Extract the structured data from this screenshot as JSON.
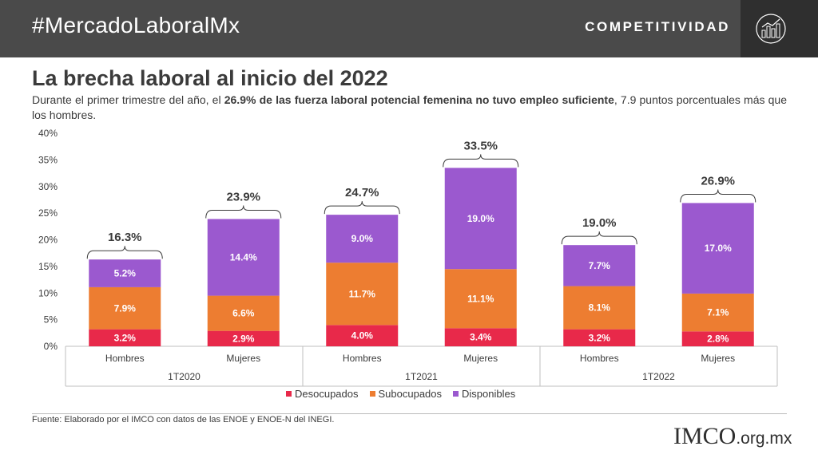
{
  "header": {
    "hashtag": "#MercadoLaboralMx",
    "brand_tag": "COMPETITIVIDAD",
    "brand_icon": "city-chart-icon"
  },
  "title": "La brecha laboral al inicio del 2022",
  "subtitle": {
    "part1": "Durante el primer trimestre del año, el ",
    "bold": "26.9% de las fuerza laboral potencial femenina no tuvo empleo suficiente",
    "part2": ", 7.9 puntos porcentuales más que los hombres."
  },
  "chart_data": {
    "type": "bar",
    "stacked": true,
    "ylim": [
      0,
      40
    ],
    "yticks": [
      "0%",
      "5%",
      "10%",
      "15%",
      "20%",
      "25%",
      "30%",
      "35%",
      "40%"
    ],
    "groups": [
      "1T2020",
      "1T2021",
      "1T2022"
    ],
    "categories": [
      "Hombres",
      "Mujeres",
      "Hombres",
      "Mujeres",
      "Hombres",
      "Mujeres"
    ],
    "series": [
      {
        "name": "Desocupados",
        "color": "#e8294a",
        "values": [
          3.2,
          2.9,
          4.0,
          3.4,
          3.2,
          2.8
        ],
        "labels": [
          "3.2%",
          "2.9%",
          "4.0%",
          "3.4%",
          "3.2%",
          "2.8%"
        ]
      },
      {
        "name": "Subocupados",
        "color": "#ed7d31",
        "values": [
          7.9,
          6.6,
          11.7,
          11.1,
          8.1,
          7.1
        ],
        "labels": [
          "7.9%",
          "6.6%",
          "11.7%",
          "11.1%",
          "8.1%",
          "7.1%"
        ]
      },
      {
        "name": "Disponibles",
        "color": "#9b59cf",
        "values": [
          5.2,
          14.4,
          9.0,
          19.0,
          7.7,
          17.0
        ],
        "labels": [
          "5.2%",
          "14.4%",
          "9.0%",
          "19.0%",
          "7.7%",
          "17.0%"
        ]
      }
    ],
    "totals": [
      "16.3%",
      "23.9%",
      "24.7%",
      "33.5%",
      "19.0%",
      "26.9%"
    ],
    "legend_position": "bottom"
  },
  "footer": {
    "source": "Fuente: Elaborado por el IMCO con datos de las ENOE y ENOE-N del INEGI.",
    "logo": "IMCO",
    "logo_domain": ".org.mx"
  }
}
